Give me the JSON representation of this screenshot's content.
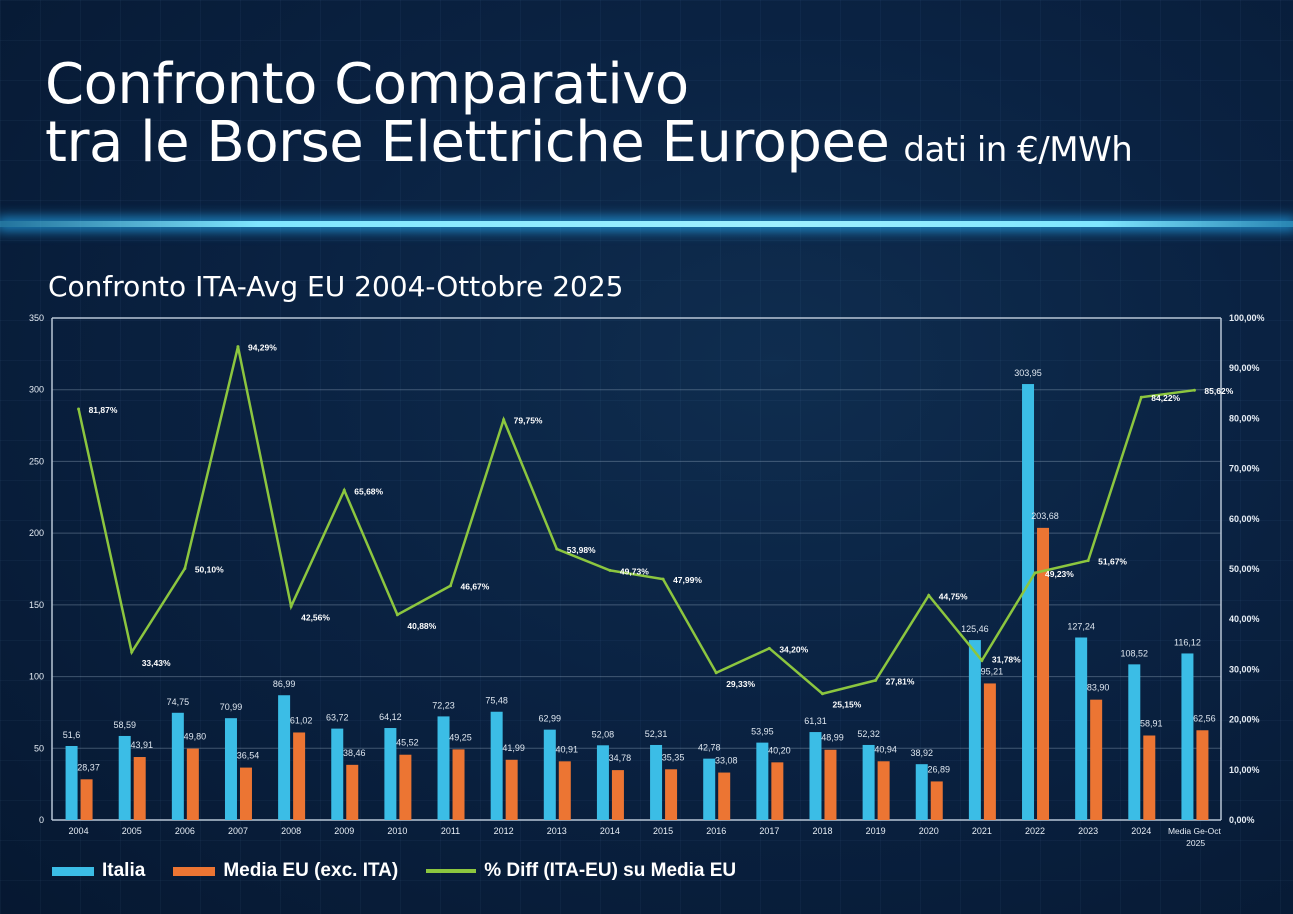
{
  "header": {
    "title_line1": "Confronto Comparativo",
    "title_line2": "tra le Borse Elettriche Europee",
    "unit": "dati in €/MWh"
  },
  "chart_data": {
    "type": "bar",
    "title": "Confronto ITA-Avg EU 2004-Ottobre 2025",
    "categories": [
      "2004",
      "2005",
      "2006",
      "2007",
      "2008",
      "2009",
      "2010",
      "2011",
      "2012",
      "2013",
      "2014",
      "2015",
      "2016",
      "2017",
      "2018",
      "2019",
      "2020",
      "2021",
      "2022",
      "2023",
      "2024",
      "Media Ge-Oct 2025"
    ],
    "series": [
      {
        "name": "Italia",
        "type": "bar",
        "axis": "left",
        "color": "#3bbde6",
        "values": [
          51.6,
          58.59,
          74.75,
          70.99,
          86.99,
          63.72,
          64.12,
          72.23,
          75.48,
          62.99,
          52.08,
          52.31,
          42.78,
          53.95,
          61.31,
          52.32,
          38.92,
          125.46,
          303.95,
          127.24,
          108.52,
          116.12
        ],
        "labels": [
          "51,6",
          "58,59",
          "74,75",
          "70,99",
          "86,99",
          "63,72",
          "64,12",
          "72,23",
          "75,48",
          "62,99",
          "52,08",
          "52,31",
          "42,78",
          "53,95",
          "61,31",
          "52,32",
          "38,92",
          "125,46",
          "303,95",
          "127,24",
          "108,52",
          "116,12"
        ]
      },
      {
        "name": "Media EU (exc. ITA)",
        "type": "bar",
        "axis": "left",
        "color": "#ec7533",
        "values": [
          28.37,
          43.91,
          49.8,
          36.54,
          61.02,
          38.46,
          45.52,
          49.25,
          41.99,
          40.91,
          34.78,
          35.35,
          33.08,
          40.2,
          48.99,
          40.94,
          26.89,
          95.21,
          203.68,
          83.9,
          58.91,
          62.56
        ],
        "labels": [
          "28,37",
          "43,91",
          "49,80",
          "36,54",
          "61,02",
          "38,46",
          "45,52",
          "49,25",
          "41,99",
          "40,91",
          "34,78",
          "35,35",
          "33,08",
          "40,20",
          "48,99",
          "40,94",
          "26,89",
          "95,21",
          "203,68",
          "83,90",
          "58,91",
          "62,56"
        ]
      },
      {
        "name": "% Diff (ITA-EU) su Media EU",
        "type": "line",
        "axis": "right",
        "color": "#8cc63f",
        "values": [
          81.87,
          33.43,
          50.1,
          94.29,
          42.56,
          65.68,
          40.88,
          46.67,
          79.75,
          53.98,
          49.73,
          47.99,
          29.33,
          34.2,
          25.15,
          27.81,
          44.75,
          31.78,
          49.23,
          51.67,
          84.22,
          85.62
        ],
        "labels": [
          "81,87%",
          "33,43%",
          "50,10%",
          "94,29%",
          "42,56%",
          "65,68%",
          "40,88%",
          "46,67%",
          "79,75%",
          "53,98%",
          "49,73%",
          "47,99%",
          "29,33%",
          "34,20%",
          "25,15%",
          "27,81%",
          "44,75%",
          "31,78%",
          "49,23%",
          "51,67%",
          "84,22%",
          "85,62%"
        ]
      }
    ],
    "ylim": [
      0,
      350
    ],
    "yticks": [
      "0",
      "50",
      "100",
      "150",
      "200",
      "250",
      "300",
      "350"
    ],
    "y2lim": [
      0,
      100
    ],
    "y2ticks": [
      "0,00%",
      "10,00%",
      "20,00%",
      "30,00%",
      "40,00%",
      "50,00%",
      "60,00%",
      "70,00%",
      "80,00%",
      "90,00%",
      "100,00%"
    ],
    "grid": true,
    "legend_position": "bottom-left"
  }
}
